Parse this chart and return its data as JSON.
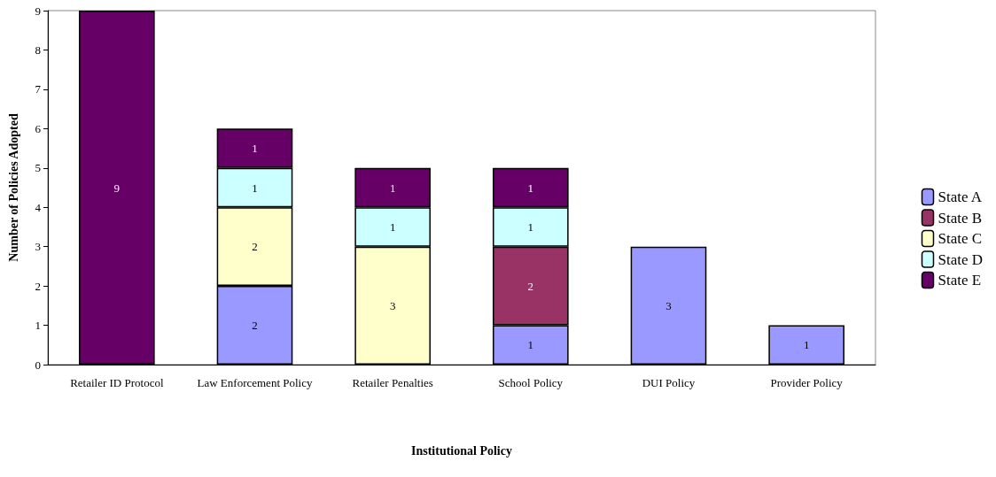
{
  "chart_data": {
    "type": "bar",
    "stacked": true,
    "xlabel": "Institutional Policy",
    "ylabel": "Number of Policies Adopted",
    "categories": [
      "Retailer ID Protocol",
      "Law Enforcement Policy",
      "Retailer Penalties",
      "School Policy",
      "DUI Policy",
      "Provider Policy"
    ],
    "series": [
      {
        "name": "State A",
        "color": "#9999ff",
        "values": [
          null,
          2,
          null,
          1,
          3,
          1
        ]
      },
      {
        "name": "State B",
        "color": "#993366",
        "values": [
          null,
          null,
          null,
          2,
          null,
          null
        ]
      },
      {
        "name": "State C",
        "color": "#ffffcc",
        "values": [
          null,
          2,
          3,
          null,
          null,
          null
        ]
      },
      {
        "name": "State D",
        "color": "#ccffff",
        "values": [
          null,
          1,
          1,
          1,
          null,
          null
        ]
      },
      {
        "name": "State E",
        "color": "#660066",
        "values": [
          9,
          1,
          1,
          1,
          null,
          null
        ]
      }
    ],
    "ylim": [
      0,
      9
    ],
    "yticks": [
      0,
      1,
      2,
      3,
      4,
      5,
      6,
      7,
      8,
      9
    ],
    "grid": false,
    "legend": "right",
    "data_labels": true
  }
}
